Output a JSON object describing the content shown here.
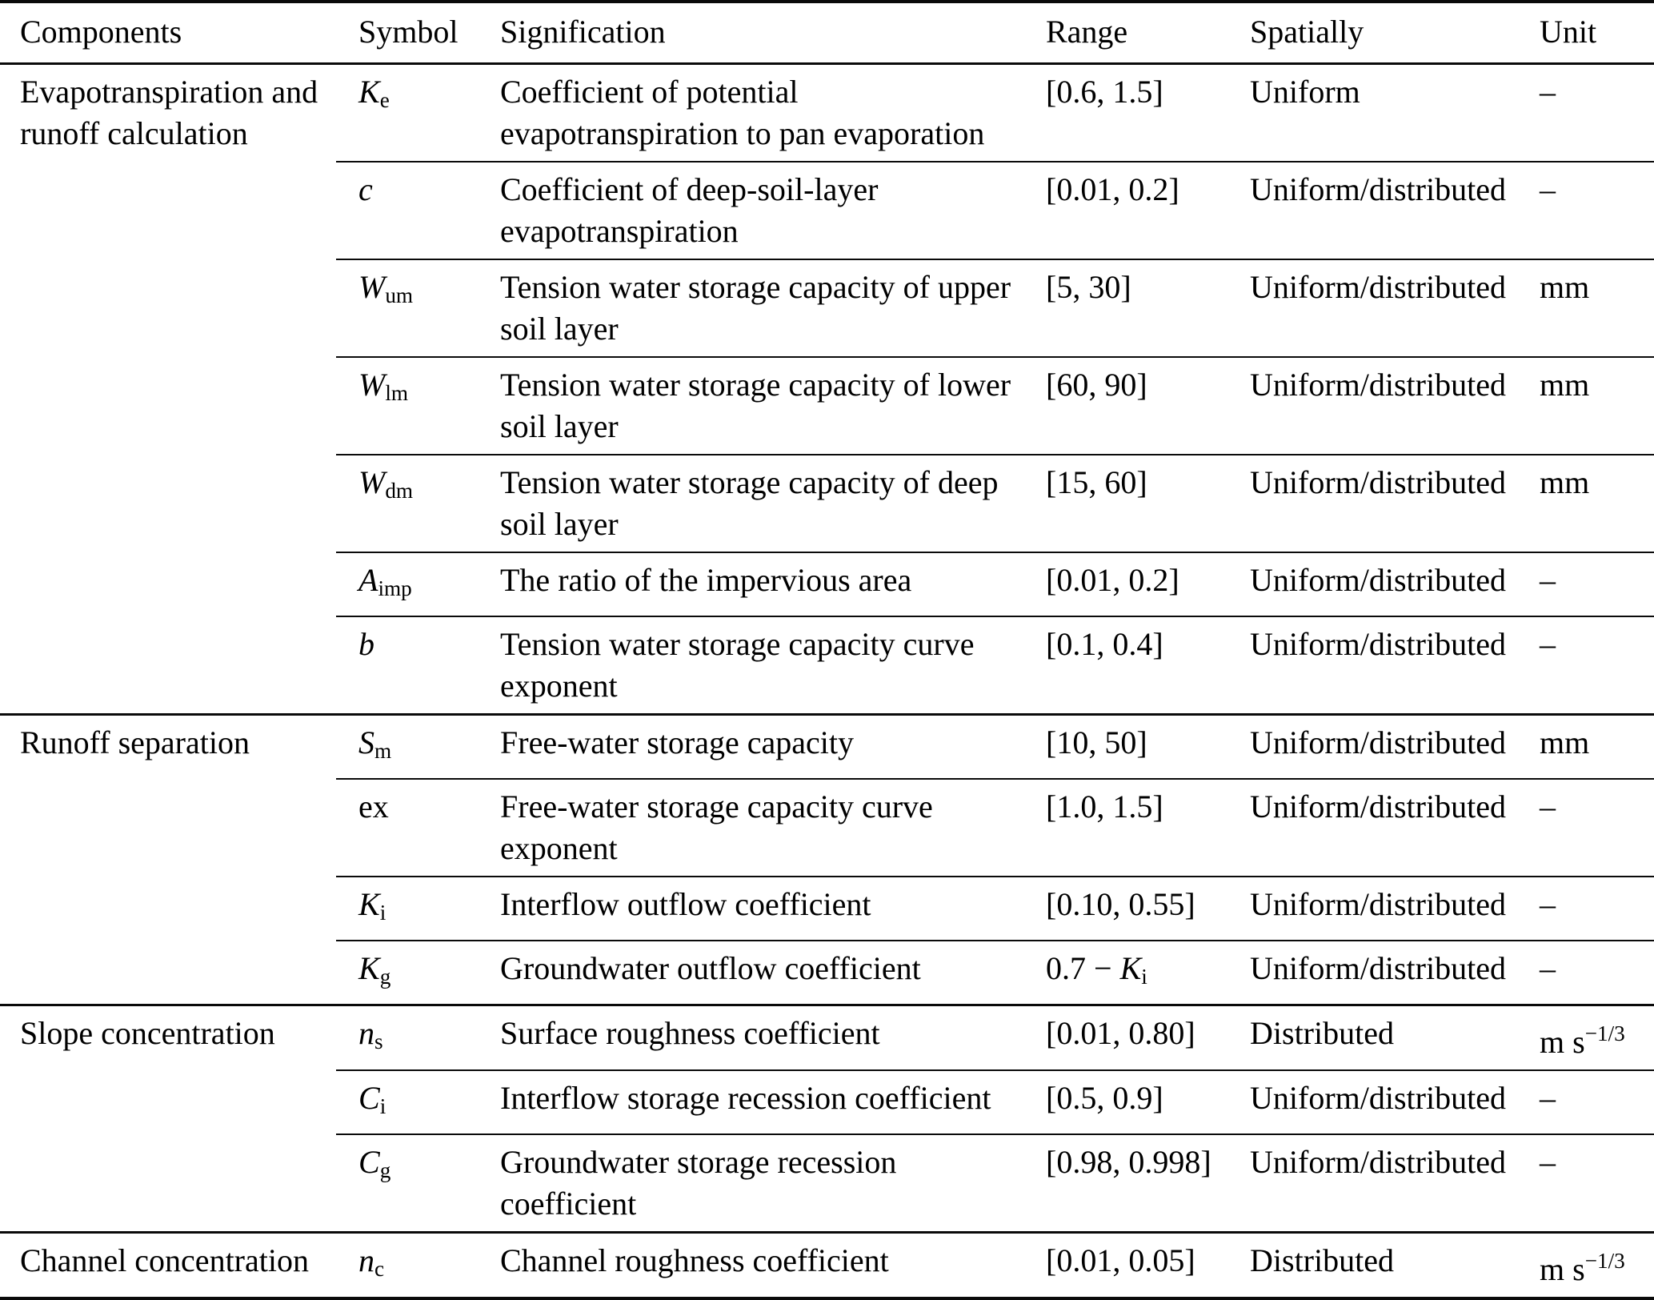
{
  "table": {
    "columns": [
      "Components",
      "Symbol",
      "Signification",
      "Range",
      "Spatially",
      "Unit"
    ],
    "sections": [
      {
        "component": "Evapotranspiration and runoff calculation",
        "rows": [
          {
            "symbol": [
              {
                "t": "K",
                "i": true
              },
              {
                "t": "e",
                "sub": true
              }
            ],
            "signification": "Coefficient of potential evapotranspiration to pan evaporation",
            "range": [
              {
                "t": "[0.6, 1.5]"
              }
            ],
            "spatially": "Uniform",
            "unit": [
              {
                "t": "–"
              }
            ]
          },
          {
            "symbol": [
              {
                "t": "c",
                "i": true
              }
            ],
            "signification": "Coefficient of deep-soil-layer evapotranspiration",
            "range": [
              {
                "t": "[0.01, 0.2]"
              }
            ],
            "spatially": "Uniform/distributed",
            "unit": [
              {
                "t": "–"
              }
            ]
          },
          {
            "symbol": [
              {
                "t": "W",
                "i": true
              },
              {
                "t": "um",
                "sub": true
              }
            ],
            "signification": "Tension water storage capacity of upper soil layer",
            "range": [
              {
                "t": "[5, 30]"
              }
            ],
            "spatially": "Uniform/distributed",
            "unit": [
              {
                "t": "mm"
              }
            ]
          },
          {
            "symbol": [
              {
                "t": "W",
                "i": true
              },
              {
                "t": "lm",
                "sub": true
              }
            ],
            "signification": "Tension water storage capacity of lower soil layer",
            "range": [
              {
                "t": "[60, 90]"
              }
            ],
            "spatially": "Uniform/distributed",
            "unit": [
              {
                "t": "mm"
              }
            ]
          },
          {
            "symbol": [
              {
                "t": "W",
                "i": true
              },
              {
                "t": "dm",
                "sub": true
              }
            ],
            "signification": "Tension water storage capacity of deep soil layer",
            "range": [
              {
                "t": "[15, 60]"
              }
            ],
            "spatially": "Uniform/distributed",
            "unit": [
              {
                "t": "mm"
              }
            ]
          },
          {
            "symbol": [
              {
                "t": "A",
                "i": true
              },
              {
                "t": "imp",
                "sub": true
              }
            ],
            "signification": "The ratio of the impervious area",
            "range": [
              {
                "t": "[0.01, 0.2]"
              }
            ],
            "spatially": "Uniform/distributed",
            "unit": [
              {
                "t": "–"
              }
            ]
          },
          {
            "symbol": [
              {
                "t": "b",
                "i": true
              }
            ],
            "signification": "Tension water storage capacity curve exponent",
            "range": [
              {
                "t": "[0.1, 0.4]"
              }
            ],
            "spatially": "Uniform/distributed",
            "unit": [
              {
                "t": "–"
              }
            ]
          }
        ]
      },
      {
        "component": "Runoff separation",
        "rows": [
          {
            "symbol": [
              {
                "t": "S",
                "i": true
              },
              {
                "t": "m",
                "sub": true
              }
            ],
            "signification": "Free-water storage capacity",
            "range": [
              {
                "t": "[10, 50]"
              }
            ],
            "spatially": "Uniform/distributed",
            "unit": [
              {
                "t": "mm"
              }
            ]
          },
          {
            "symbol": [
              {
                "t": "ex"
              }
            ],
            "signification": "Free-water storage capacity curve exponent",
            "range": [
              {
                "t": "[1.0, 1.5]"
              }
            ],
            "spatially": "Uniform/distributed",
            "unit": [
              {
                "t": "–"
              }
            ]
          },
          {
            "symbol": [
              {
                "t": "K",
                "i": true
              },
              {
                "t": "i",
                "sub": true
              }
            ],
            "signification": "Interflow outflow coefficient",
            "range": [
              {
                "t": "[0.10, 0.55]"
              }
            ],
            "spatially": "Uniform/distributed",
            "unit": [
              {
                "t": "–"
              }
            ]
          },
          {
            "symbol": [
              {
                "t": "K",
                "i": true
              },
              {
                "t": "g",
                "sub": true
              }
            ],
            "signification": "Groundwater outflow coefficient",
            "range": [
              {
                "t": "0.7 − "
              },
              {
                "t": "K",
                "i": true
              },
              {
                "t": "i",
                "sub": true
              }
            ],
            "spatially": "Uniform/distributed",
            "unit": [
              {
                "t": "–"
              }
            ]
          }
        ]
      },
      {
        "component": "Slope concentration",
        "rows": [
          {
            "symbol": [
              {
                "t": "n",
                "i": true
              },
              {
                "t": "s",
                "sub": true
              }
            ],
            "signification": "Surface roughness coefficient",
            "range": [
              {
                "t": "[0.01, 0.80]"
              }
            ],
            "spatially": "Distributed",
            "unit": [
              {
                "t": "m s"
              },
              {
                "t": "−1/3",
                "sup": true
              }
            ]
          },
          {
            "symbol": [
              {
                "t": "C",
                "i": true
              },
              {
                "t": "i",
                "sub": true
              }
            ],
            "signification": "Interflow storage recession coefficient",
            "range": [
              {
                "t": "[0.5, 0.9]"
              }
            ],
            "spatially": "Uniform/distributed",
            "unit": [
              {
                "t": "–"
              }
            ]
          },
          {
            "symbol": [
              {
                "t": "C",
                "i": true
              },
              {
                "t": "g",
                "sub": true
              }
            ],
            "signification": "Groundwater storage recession coefficient",
            "range": [
              {
                "t": "[0.98, 0.998]"
              }
            ],
            "spatially": "Uniform/distributed",
            "unit": [
              {
                "t": "–"
              }
            ]
          }
        ]
      },
      {
        "component": "Channel concentration",
        "rows": [
          {
            "symbol": [
              {
                "t": "n",
                "i": true
              },
              {
                "t": "c",
                "sub": true
              }
            ],
            "signification": "Channel roughness coefficient",
            "range": [
              {
                "t": "[0.01, 0.05]"
              }
            ],
            "spatially": "Distributed",
            "unit": [
              {
                "t": "m s"
              },
              {
                "t": "−1/3",
                "sup": true
              }
            ]
          }
        ]
      }
    ]
  }
}
